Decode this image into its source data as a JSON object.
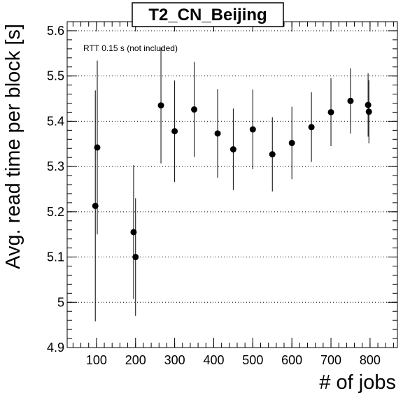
{
  "chart_data": {
    "type": "scatter",
    "title": "T2_CN_Beijing",
    "annotation": "RTT 0.15 s (not included)",
    "xlabel": "# of jobs",
    "ylabel": "Avg. read time per block [s]",
    "xlim": [
      25,
      870
    ],
    "ylim": [
      4.9,
      5.62
    ],
    "xticks": [
      100,
      200,
      300,
      400,
      500,
      600,
      700,
      800
    ],
    "yticks": [
      4.9,
      5,
      5.1,
      5.2,
      5.3,
      5.4,
      5.5,
      5.6
    ],
    "xtick_labels": [
      "100",
      "200",
      "300",
      "400",
      "500",
      "600",
      "700",
      "800"
    ],
    "ytick_labels": [
      "4.9",
      "5",
      "5.1",
      "5.2",
      "5.3",
      "5.4",
      "5.5",
      "5.6"
    ],
    "grid": "horizontal dotted",
    "legend": "none",
    "points": [
      {
        "x": 97,
        "y": 5.213,
        "err": 0.255
      },
      {
        "x": 102,
        "y": 5.342,
        "err": 0.192
      },
      {
        "x": 195,
        "y": 5.155,
        "err": 0.148
      },
      {
        "x": 200,
        "y": 5.1,
        "err": 0.13
      },
      {
        "x": 265,
        "y": 5.435,
        "err": 0.128
      },
      {
        "x": 300,
        "y": 5.378,
        "err": 0.112
      },
      {
        "x": 350,
        "y": 5.426,
        "err": 0.105
      },
      {
        "x": 410,
        "y": 5.373,
        "err": 0.098
      },
      {
        "x": 450,
        "y": 5.338,
        "err": 0.09
      },
      {
        "x": 500,
        "y": 5.382,
        "err": 0.088
      },
      {
        "x": 550,
        "y": 5.327,
        "err": 0.082
      },
      {
        "x": 600,
        "y": 5.352,
        "err": 0.08
      },
      {
        "x": 650,
        "y": 5.387,
        "err": 0.077
      },
      {
        "x": 700,
        "y": 5.42,
        "err": 0.075
      },
      {
        "x": 750,
        "y": 5.445,
        "err": 0.072
      },
      {
        "x": 795,
        "y": 5.436,
        "err": 0.07
      },
      {
        "x": 797,
        "y": 5.421,
        "err": 0.07
      }
    ],
    "colors": {
      "marker": "#000000",
      "axis": "#000000",
      "grid": "#000000"
    }
  }
}
